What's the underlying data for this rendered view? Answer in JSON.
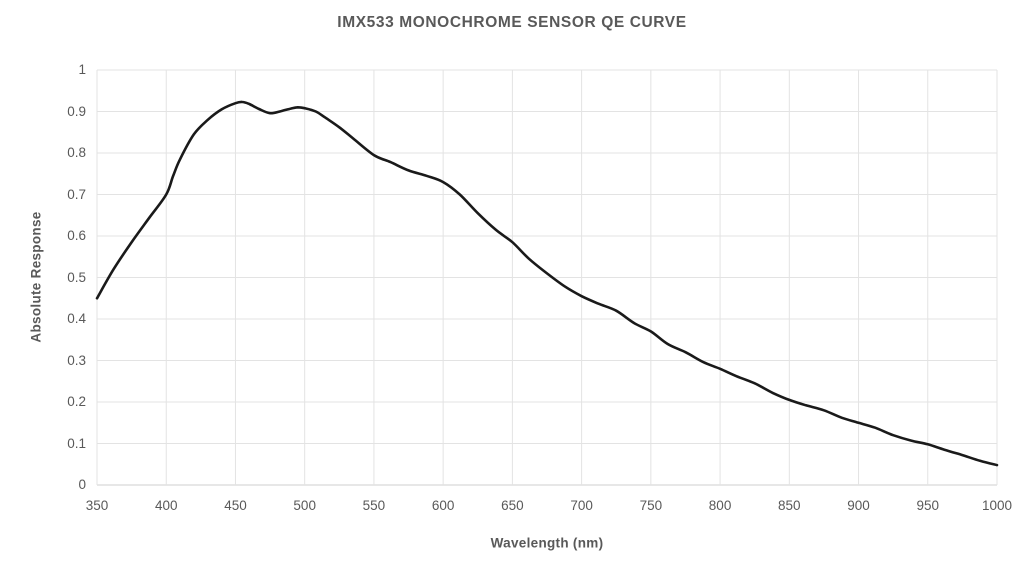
{
  "chart_data": {
    "type": "line",
    "title": "IMX533 MONOCHROME SENSOR QE CURVE",
    "xlabel": "Wavelength (nm)",
    "ylabel": "Absolute Response",
    "xlim": [
      350,
      1000
    ],
    "ylim": [
      0,
      1
    ],
    "x_tick_labels": [
      "350",
      "400",
      "450",
      "500",
      "550",
      "600",
      "650",
      "700",
      "750",
      "800",
      "850",
      "900",
      "950",
      "1000"
    ],
    "x_tick_values": [
      350,
      400,
      450,
      500,
      550,
      600,
      650,
      700,
      750,
      800,
      850,
      900,
      950,
      1000
    ],
    "y_tick_labels": [
      "0",
      "0.1",
      "0.2",
      "0.3",
      "0.4",
      "0.5",
      "0.6",
      "0.7",
      "0.8",
      "0.9",
      "1"
    ],
    "y_tick_values": [
      0,
      0.1,
      0.2,
      0.3,
      0.4,
      0.5,
      0.6,
      0.7,
      0.8,
      0.9,
      1
    ],
    "grid": "both",
    "legend_position": "none",
    "series": [
      {
        "name": "QE",
        "x": [
          350,
          362,
          375,
          388,
          400,
          405,
          410,
          420,
          430,
          440,
          450,
          455,
          460,
          467,
          475,
          483,
          490,
          495,
          500,
          508,
          515,
          525,
          535,
          550,
          562,
          575,
          588,
          600,
          612,
          625,
          638,
          650,
          662,
          675,
          688,
          700,
          712,
          725,
          738,
          750,
          762,
          775,
          788,
          800,
          812,
          825,
          838,
          850,
          862,
          875,
          888,
          900,
          912,
          925,
          938,
          950,
          962,
          975,
          988,
          1000
        ],
        "y": [
          0.45,
          0.52,
          0.585,
          0.645,
          0.7,
          0.745,
          0.785,
          0.845,
          0.88,
          0.905,
          0.92,
          0.923,
          0.918,
          0.906,
          0.896,
          0.901,
          0.907,
          0.91,
          0.908,
          0.9,
          0.885,
          0.862,
          0.835,
          0.795,
          0.778,
          0.758,
          0.745,
          0.73,
          0.7,
          0.655,
          0.615,
          0.585,
          0.545,
          0.51,
          0.478,
          0.455,
          0.437,
          0.42,
          0.39,
          0.37,
          0.34,
          0.32,
          0.296,
          0.28,
          0.262,
          0.245,
          0.222,
          0.205,
          0.192,
          0.18,
          0.162,
          0.15,
          0.138,
          0.12,
          0.107,
          0.098,
          0.085,
          0.072,
          0.058,
          0.048
        ]
      }
    ],
    "annotations": {
      "peak_wavelength_nm": 455,
      "peak_value": 0.92,
      "local_dip_wavelength_nm": 475,
      "local_dip_value": 0.9,
      "secondary_max_wavelength_nm": 495,
      "secondary_max_value": 0.91
    }
  },
  "style": {
    "line_color": "#1a1a1a",
    "grid_color": "#e3e3e3",
    "axis_line_color": "#cfcfcf",
    "text_color": "#595959",
    "background_color": "#ffffff"
  }
}
